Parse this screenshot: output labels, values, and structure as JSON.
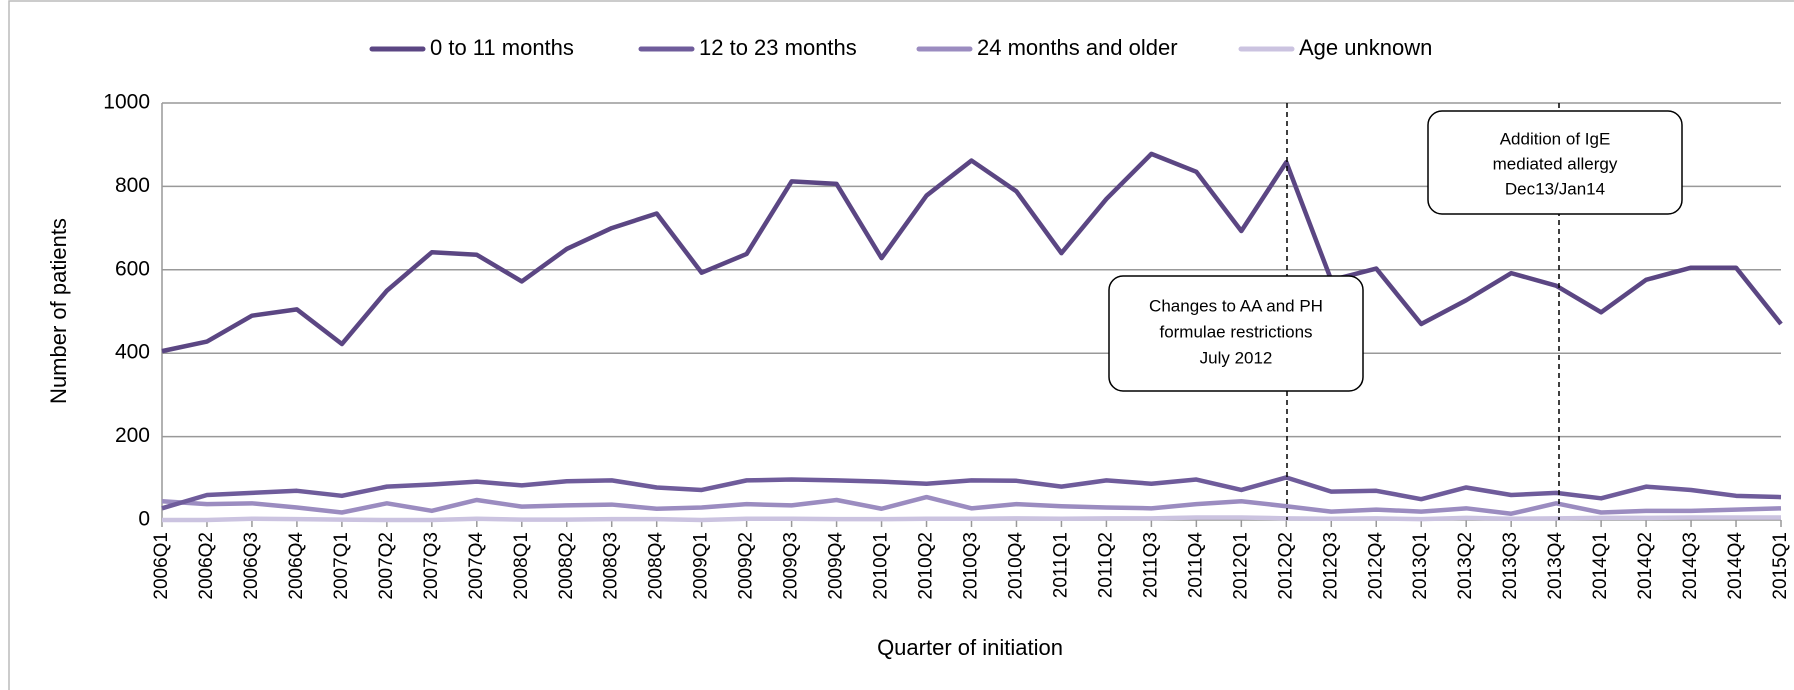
{
  "chart_data": {
    "type": "line",
    "x_label": "Quarter of initiation",
    "y_label": "Number of patients",
    "categories": [
      "2006Q1",
      "2006Q2",
      "2006Q3",
      "2006Q4",
      "2007Q1",
      "2007Q2",
      "2007Q3",
      "2007Q4",
      "2008Q1",
      "2008Q2",
      "2008Q3",
      "2008Q4",
      "2009Q1",
      "2009Q2",
      "2009Q3",
      "2009Q4",
      "2010Q1",
      "2010Q2",
      "2010Q3",
      "2010Q4",
      "2011Q1",
      "2011Q2",
      "2011Q3",
      "2011Q4",
      "2012Q1",
      "2012Q2",
      "2012Q3",
      "2012Q4",
      "2013Q1",
      "2013Q2",
      "2013Q3",
      "2013Q4",
      "2014Q1",
      "2014Q2",
      "2014Q3",
      "2014Q4",
      "2015Q1"
    ],
    "series": [
      {
        "name": "0 to 11 months",
        "color": "#5b4683",
        "values": [
          405,
          428,
          490,
          505,
          422,
          550,
          642,
          636,
          572,
          650,
          700,
          735,
          593,
          638,
          812,
          806,
          628,
          778,
          862,
          788,
          640,
          770,
          878,
          835,
          693,
          858,
          575,
          603,
          470,
          527,
          592,
          562,
          498,
          576,
          605,
          605,
          470
        ]
      },
      {
        "name": "12 to 23 months",
        "color": "#6f5c9b",
        "values": [
          28,
          60,
          65,
          70,
          58,
          80,
          85,
          92,
          83,
          93,
          95,
          78,
          72,
          95,
          97,
          95,
          92,
          87,
          95,
          94,
          80,
          95,
          87,
          97,
          72,
          102,
          68,
          70,
          50,
          78,
          60,
          65,
          52,
          80,
          72,
          58,
          55
        ]
      },
      {
        "name": "24 months and older",
        "color": "#9b8cc0",
        "values": [
          45,
          38,
          40,
          30,
          18,
          40,
          22,
          48,
          32,
          35,
          37,
          27,
          30,
          38,
          35,
          48,
          27,
          55,
          28,
          38,
          33,
          30,
          28,
          38,
          45,
          33,
          20,
          25,
          20,
          28,
          15,
          40,
          18,
          22,
          22,
          25,
          28
        ]
      },
      {
        "name": "Age unknown",
        "color": "#cbc3e0",
        "values": [
          0,
          0,
          3,
          2,
          1,
          0,
          0,
          3,
          1,
          1,
          2,
          2,
          0,
          3,
          3,
          2,
          2,
          3,
          3,
          4,
          3,
          4,
          4,
          6,
          6,
          4,
          3,
          4,
          2,
          5,
          3,
          4,
          5,
          5,
          6,
          6,
          6
        ]
      }
    ],
    "ylim": [
      0,
      1000
    ],
    "yticks": [
      0,
      200,
      400,
      600,
      800,
      1000
    ],
    "grid": true,
    "annotations": [
      {
        "text": [
          "Changes to AA and PH",
          "formulae restrictions",
          "July 2012"
        ]
      },
      {
        "text": [
          "Addition of IgE",
          "mediated allergy",
          "Dec13/Jan14"
        ]
      }
    ]
  }
}
